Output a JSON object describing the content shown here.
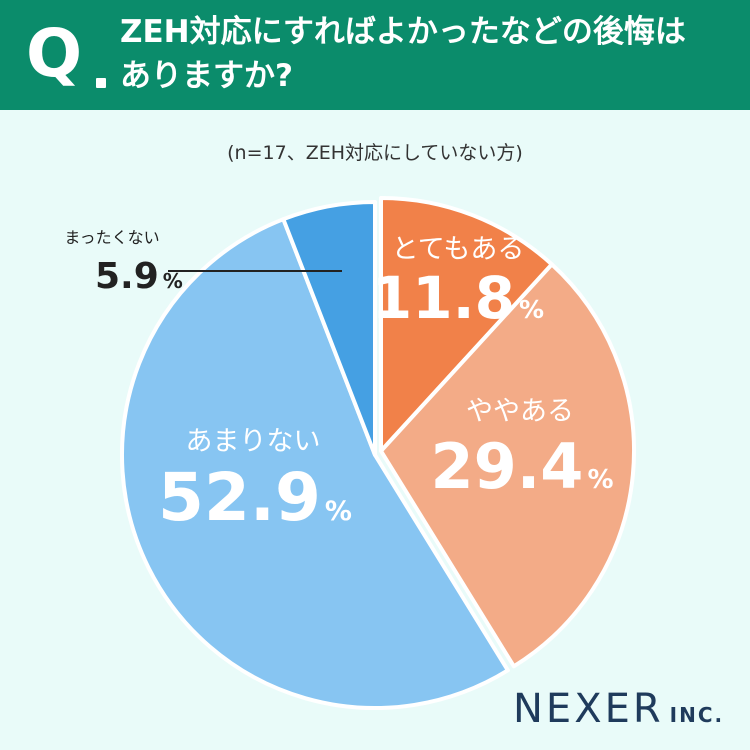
{
  "header": {
    "q_letter": "Q",
    "question_line1": "ZEH対応にすればよかったなどの後悔は",
    "question_line2": "ありますか?"
  },
  "sample_note": "(n=17、ZEH対応にしていない方)",
  "brand": {
    "name": "NEXER",
    "suffix": "INC."
  },
  "colors": {
    "header_bg": "#0b8c6b",
    "background": "#e9fbf9",
    "totemo": "#f18149",
    "yaya": "#f3ab87",
    "amari": "#87c5f2",
    "mattaku": "#45a0e3",
    "logo": "#1f3b5c"
  },
  "chart_data": {
    "type": "pie",
    "title": "",
    "unit": "%",
    "start": "12 o'clock, clockwise",
    "slices": [
      {
        "label": "とてもある",
        "value": 11.8,
        "color": "#f18149",
        "exploded": true
      },
      {
        "label": "ややある",
        "value": 29.4,
        "color": "#f3ab87",
        "exploded": true
      },
      {
        "label": "あまりない",
        "value": 52.9,
        "color": "#87c5f2",
        "exploded": false
      },
      {
        "label": "まったくない",
        "value": 5.9,
        "color": "#45a0e3",
        "exploded": false
      }
    ]
  }
}
